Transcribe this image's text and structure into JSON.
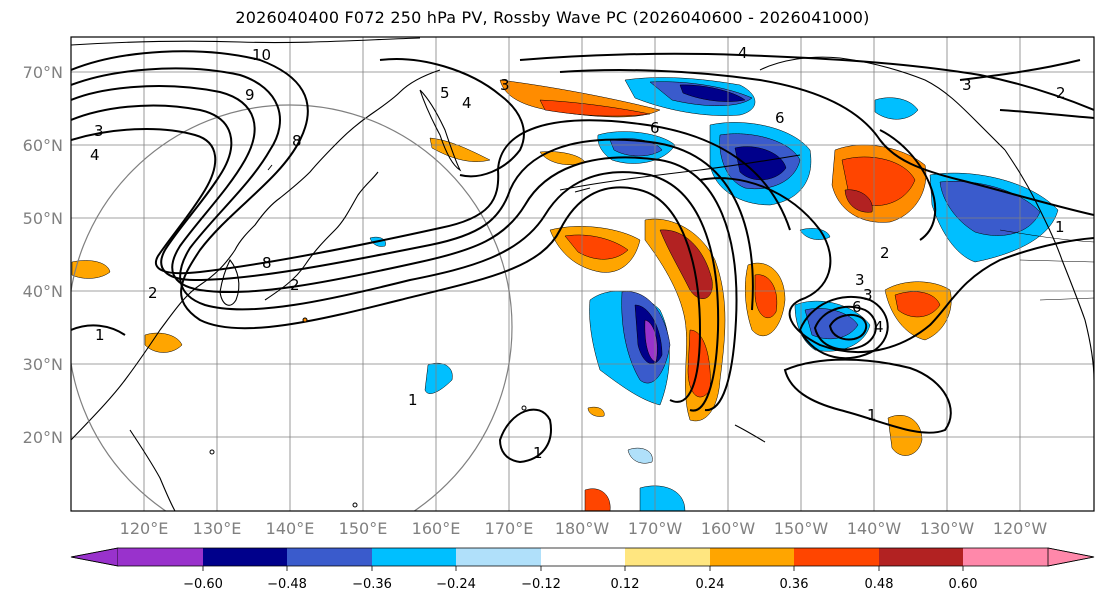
{
  "title": "2026040400 F072 250 hPa PV, Rossby Wave PC (2026040600 - 2026041000)",
  "map": {
    "lat_labels": [
      "70°N",
      "60°N",
      "50°N",
      "40°N",
      "30°N",
      "20°N"
    ],
    "lon_labels": [
      "120°E",
      "130°E",
      "140°E",
      "150°E",
      "160°E",
      "170°E",
      "180°W",
      "170°W",
      "160°W",
      "150°W",
      "140°W",
      "130°W",
      "120°W"
    ],
    "lat_values": [
      70,
      60,
      50,
      40,
      30,
      20
    ],
    "lon_values": [
      120,
      130,
      140,
      150,
      160,
      170,
      180,
      -170,
      -160,
      -150,
      -140,
      -130,
      -120
    ],
    "contour_labels": [
      "10",
      "9",
      "8",
      "3",
      "4",
      "5",
      "3",
      "4",
      "8",
      "2",
      "1",
      "1",
      "1",
      "6",
      "6",
      "4",
      "3",
      "2",
      "3",
      "2",
      "1",
      "1",
      "4",
      "6",
      "3",
      "2"
    ]
  },
  "colorbar": {
    "ticks": [
      "−0.60",
      "−0.48",
      "−0.36",
      "−0.24",
      "−0.12",
      "0.12",
      "0.24",
      "0.36",
      "0.48",
      "0.60"
    ],
    "colors": [
      "#9932cc",
      "#00008b",
      "#3a5bcc",
      "#00bfff",
      "#b0e0fa",
      "#ffffff",
      "#ffe680",
      "#ffa500",
      "#ff4500",
      "#b22222",
      "#ff88aa"
    ]
  },
  "colors": {
    "frame": "#000000",
    "grid": "#808080",
    "coast": "#000000",
    "range_circle": "#808080"
  }
}
